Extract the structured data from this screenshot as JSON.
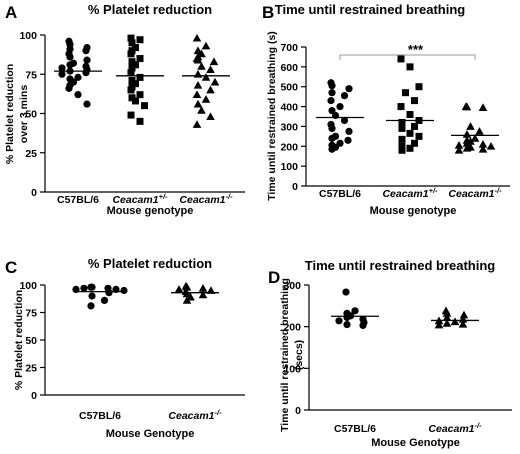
{
  "chart_data": [
    {
      "panel": "A",
      "type": "scatter",
      "title": "% Platelet reduction",
      "xlabel": "Mouse genotype",
      "ylabel": "% Platelet reduction over 3 mins",
      "ylim": [
        0,
        100
      ],
      "yticks": [
        0,
        25,
        50,
        75,
        100
      ],
      "grid": false,
      "legend": "none",
      "groups": [
        {
          "label": "C57BL/6",
          "base": "C57BL/6",
          "sup": "",
          "italic": false,
          "marker": "circle",
          "mean": 77,
          "values": [
            96,
            94,
            92,
            91,
            90,
            88,
            86,
            84,
            82,
            81,
            80,
            79,
            78,
            77,
            76,
            75,
            73,
            72,
            70,
            68,
            66,
            62,
            56
          ]
        },
        {
          "label": "Ceacam1+/-",
          "base": "Ceacam1",
          "sup": "+/-",
          "italic": true,
          "marker": "square",
          "mean": 74,
          "values": [
            98,
            97,
            95,
            92,
            90,
            88,
            85,
            83,
            81,
            79,
            76,
            73,
            71,
            69,
            67,
            65,
            62,
            60,
            58,
            55,
            49,
            45
          ]
        },
        {
          "label": "Ceacam1-/-",
          "base": "Ceacam1",
          "sup": "-/-",
          "italic": true,
          "marker": "triangle",
          "mean": 74,
          "values": [
            98,
            93,
            90,
            88,
            86,
            85,
            84,
            83,
            80,
            78,
            75,
            73,
            70,
            68,
            65,
            62,
            59,
            56,
            52,
            48,
            43
          ]
        }
      ]
    },
    {
      "panel": "B",
      "type": "scatter",
      "title": "Time until restrained breathing",
      "xlabel": "Mouse genotype",
      "ylabel": "Time until restrained breathing (s)",
      "ylim": [
        0,
        700
      ],
      "yticks": [
        0,
        100,
        200,
        300,
        400,
        500,
        600,
        700
      ],
      "grid": false,
      "legend": "none",
      "significance": {
        "label": "***",
        "from": 0,
        "to": 2,
        "y": 660
      },
      "groups": [
        {
          "label": "C57BL/6",
          "base": "C57BL/6",
          "sup": "",
          "italic": false,
          "marker": "circle",
          "mean": 345,
          "values": [
            520,
            505,
            490,
            470,
            455,
            430,
            400,
            380,
            355,
            330,
            310,
            290,
            275,
            250,
            240,
            230,
            215,
            205,
            195,
            185
          ]
        },
        {
          "label": "Ceacam1+/-",
          "base": "Ceacam1",
          "sup": "+/-",
          "italic": true,
          "marker": "square",
          "mean": 330,
          "values": [
            640,
            600,
            500,
            470,
            430,
            400,
            360,
            330,
            320,
            300,
            290,
            265,
            250,
            235,
            215,
            200,
            190,
            180
          ]
        },
        {
          "label": "Ceacam1-/-",
          "base": "Ceacam1",
          "sup": "-/-",
          "italic": true,
          "marker": "triangle",
          "mean": 255,
          "values": [
            400,
            398,
            395,
            300,
            275,
            260,
            240,
            230,
            225,
            215,
            210,
            205,
            200,
            195,
            190,
            185,
            180
          ]
        }
      ]
    },
    {
      "panel": "C",
      "type": "scatter",
      "title": "% Platelet reduction",
      "xlabel": "Mouse Genotype",
      "ylabel": "% Platelet reduction",
      "ylim": [
        0,
        100
      ],
      "yticks": [
        0,
        25,
        50,
        75,
        100
      ],
      "grid": false,
      "legend": "none",
      "groups": [
        {
          "label": "C57BL/6",
          "base": "C57BL/6",
          "sup": "",
          "italic": false,
          "marker": "circle",
          "mean": 94,
          "values": [
            98,
            98,
            97,
            97,
            96,
            96,
            95,
            93,
            90,
            86,
            81
          ]
        },
        {
          "label": "Ceacam1-/-",
          "base": "Ceacam1",
          "sup": "-/-",
          "italic": true,
          "marker": "triangle",
          "mean": 93,
          "values": [
            99,
            98,
            97,
            96,
            95,
            94,
            92,
            91,
            89,
            86
          ]
        }
      ]
    },
    {
      "panel": "D",
      "type": "scatter",
      "title": "Time until restrained breathing",
      "xlabel": "Mouse Genotype",
      "ylabel": "Time until restrained breathing (secs)",
      "ylim": [
        0,
        300
      ],
      "yticks": [
        0,
        100,
        200,
        300
      ],
      "grid": false,
      "legend": "none",
      "groups": [
        {
          "label": "C57BL/6",
          "base": "C57BL/6",
          "sup": "",
          "italic": false,
          "marker": "circle",
          "mean": 225,
          "values": [
            283,
            238,
            232,
            226,
            222,
            218,
            214,
            210,
            205,
            203
          ]
        },
        {
          "label": "Ceacam1-/-",
          "base": "Ceacam1",
          "sup": "-/-",
          "italic": true,
          "marker": "triangle",
          "mean": 215,
          "values": [
            238,
            232,
            228,
            222,
            218,
            214,
            212,
            208,
            206,
            204
          ]
        }
      ]
    }
  ]
}
